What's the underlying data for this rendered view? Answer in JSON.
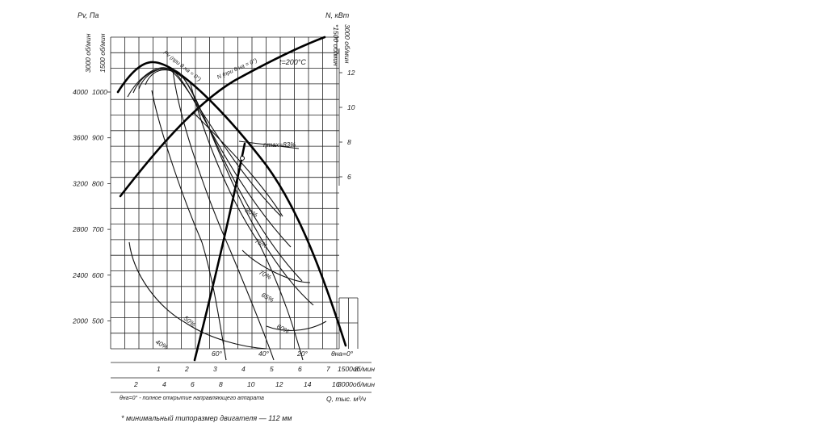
{
  "chart_data": {
    "type": "line",
    "title": "",
    "temperature": "t=200°C",
    "axes": {
      "left_outer": {
        "label": "Pv, Па",
        "rpm": "3000 об/мин",
        "ticks": [
          "4000",
          "3600",
          "3200",
          "2800",
          "2400",
          "2000"
        ],
        "values": [
          4000,
          3600,
          3200,
          2800,
          2400,
          2000
        ]
      },
      "left_inner": {
        "rpm": "1500 об/мин",
        "ticks": [
          "1000",
          "900",
          "800",
          "700",
          "600",
          "500"
        ],
        "values": [
          1000,
          900,
          800,
          700,
          600,
          500
        ]
      },
      "right": {
        "label": "N, кВт",
        "rpm_outer": "*1500 об/мин",
        "rpm_inner": "3000 об/мин",
        "ticks": [
          "12",
          "10",
          "8",
          "6"
        ],
        "values": [
          12,
          10,
          8,
          6
        ]
      },
      "bottom_1500": {
        "label": "1500об/мин",
        "ticks": [
          "1",
          "2",
          "3",
          "4",
          "5",
          "6",
          "7",
          "8"
        ],
        "values": [
          1,
          2,
          3,
          4,
          5,
          6,
          7,
          8
        ]
      },
      "bottom_3000": {
        "label": "3000об/мин",
        "ticks": [
          "2",
          "4",
          "6",
          "8",
          "10",
          "12",
          "14",
          "16"
        ],
        "values": [
          2,
          4,
          6,
          8,
          10,
          12,
          14,
          16
        ]
      },
      "x_label": "Q, тыс. м³/ч"
    },
    "curve_labels": {
      "pv": "Pv (при θ на = 0°)",
      "power": "N (при θ на = 0°)",
      "eta_max": "ηmax=83%"
    },
    "efficiency_labels": [
      "80%",
      "75%",
      "70%",
      "65%",
      "60%",
      "50%",
      "40%"
    ],
    "vane_angle_labels": [
      "60°",
      "40°",
      "20°",
      "θна=0°"
    ],
    "series": [
      {
        "name": "Pv (при θ на = 0°)",
        "x": [
          0.4,
          1.0,
          2.0,
          3.0,
          4.0,
          5.0,
          6.0,
          7.0,
          7.6,
          8.1
        ],
        "y": [
          1000,
          1050,
          1060,
          1030,
          960,
          870,
          760,
          620,
          520,
          420
        ]
      },
      {
        "name": "N (при θ на = 0°)",
        "x": [
          0.4,
          1.5,
          3.0,
          4.5,
          6.0,
          7.0,
          7.8
        ],
        "y": [
          6.2,
          7.6,
          9.6,
          11.2,
          12.4,
          13.0,
          13.4
        ]
      }
    ]
  },
  "notes": {
    "vane_note": "θна=0° - полное открытие направляющего аппарата",
    "motor_note": "* минимальный типоразмер двигателя — 112 мм"
  }
}
